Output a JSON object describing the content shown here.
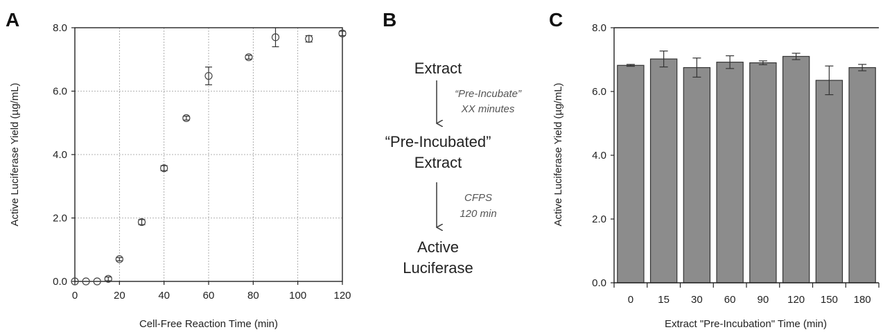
{
  "panels": {
    "a": "A",
    "b": "B",
    "c": "C"
  },
  "flow": {
    "step1": "Extract",
    "note1_line1": "“Pre-Incubate”",
    "note1_line2": "XX minutes",
    "step2_line1": "“Pre-Incubated”",
    "step2_line2": "Extract",
    "note2_line1": "CFPS",
    "note2_line2": "120 min",
    "step3_line1": "Active",
    "step3_line2": "Luciferase"
  },
  "chart_data": [
    {
      "type": "scatter",
      "xlabel": "Cell-Free Reaction Time (min)",
      "ylabel": "Active Luciferase Yield (µg/mL)",
      "xlim": [
        0,
        120
      ],
      "ylim": [
        0,
        8
      ],
      "xticks": [
        "0",
        "20",
        "40",
        "60",
        "80",
        "100",
        "120"
      ],
      "yticks": [
        "0.0",
        "2.0",
        "4.0",
        "6.0",
        "8.0"
      ],
      "grid": true,
      "marker": "open-circle",
      "points": [
        {
          "x": 0,
          "y": 0.0,
          "err": 0.0
        },
        {
          "x": 5,
          "y": 0.0,
          "err": 0.0
        },
        {
          "x": 10,
          "y": 0.0,
          "err": 0.0
        },
        {
          "x": 15,
          "y": 0.08,
          "err": 0.06
        },
        {
          "x": 20,
          "y": 0.7,
          "err": 0.05
        },
        {
          "x": 30,
          "y": 1.87,
          "err": 0.08
        },
        {
          "x": 40,
          "y": 3.57,
          "err": 0.08
        },
        {
          "x": 50,
          "y": 5.15,
          "err": 0.06
        },
        {
          "x": 60,
          "y": 6.48,
          "err": 0.28
        },
        {
          "x": 78,
          "y": 7.07,
          "err": 0.06
        },
        {
          "x": 90,
          "y": 7.7,
          "err": 0.3
        },
        {
          "x": 105,
          "y": 7.65,
          "err": 0.1
        },
        {
          "x": 120,
          "y": 7.82,
          "err": 0.07
        }
      ]
    },
    {
      "type": "bar",
      "xlabel": "Extract \"Pre-Incubation\" Time (min)",
      "ylabel": "Active Luciferase Yield (µg/mL)",
      "ylim": [
        0,
        8
      ],
      "yticks": [
        "0.0",
        "2.0",
        "4.0",
        "6.0",
        "8.0"
      ],
      "categories": [
        "0",
        "15",
        "30",
        "60",
        "90",
        "120",
        "150",
        "180"
      ],
      "values": [
        6.82,
        7.02,
        6.75,
        6.92,
        6.9,
        7.1,
        6.35,
        6.75
      ],
      "errors": [
        0.03,
        0.25,
        0.3,
        0.2,
        0.06,
        0.1,
        0.45,
        0.1
      ],
      "bar_color": "#8c8c8c",
      "grid": false
    }
  ]
}
